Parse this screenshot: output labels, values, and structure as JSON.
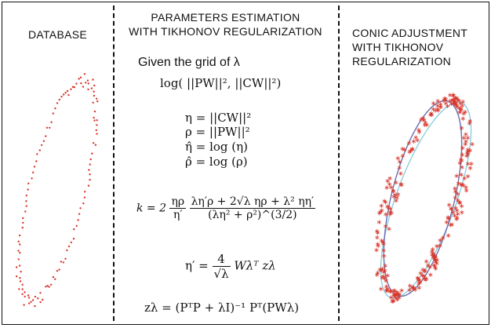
{
  "left_panel": {
    "title": "DATABASE"
  },
  "middle_panel": {
    "title": "PARAMETERS ESTIMATION\nWITH TIKHONOV REGULARIZATION",
    "intro": "Given the grid of λ",
    "equations": {
      "log_pair": "log( ||PW||², ||CW||²)",
      "eta": "η = ||CW||²",
      "rho": "ρ = ||PW||²",
      "eta_hat": "η̂ = log (η)",
      "rho_hat": "ρ̂ = log (ρ)",
      "k_lhs": "k = 2",
      "k_f1_num": "ηρ",
      "k_f1_den": "η′",
      "k_f2_num": "λη′ρ + 2√λ ηρ + λ² ηη′",
      "k_f2_den": "(λη² + ρ²)^(3/2)",
      "eta_prime_lhs": "η′ =",
      "eta_prime_num": "4",
      "eta_prime_den": "√λ",
      "eta_prime_rhs": "Wλᵀ zλ",
      "z_lambda": "zλ = (PᵀP + λI)⁻¹ Pᵀ(PWλ)"
    }
  },
  "right_panel": {
    "title": "CONIC ADJUSTMENT\nWITH TIKHONOV\nREGULARIZATION"
  },
  "colors": {
    "points": "#d9362b",
    "ellipse_fit": "#6a6fb0",
    "ellipse_fit_alt": "#8ccfe0",
    "ink": "#111111"
  },
  "icons": {
    "point_marker": "red-dot",
    "scatter_marker": "red-star"
  }
}
